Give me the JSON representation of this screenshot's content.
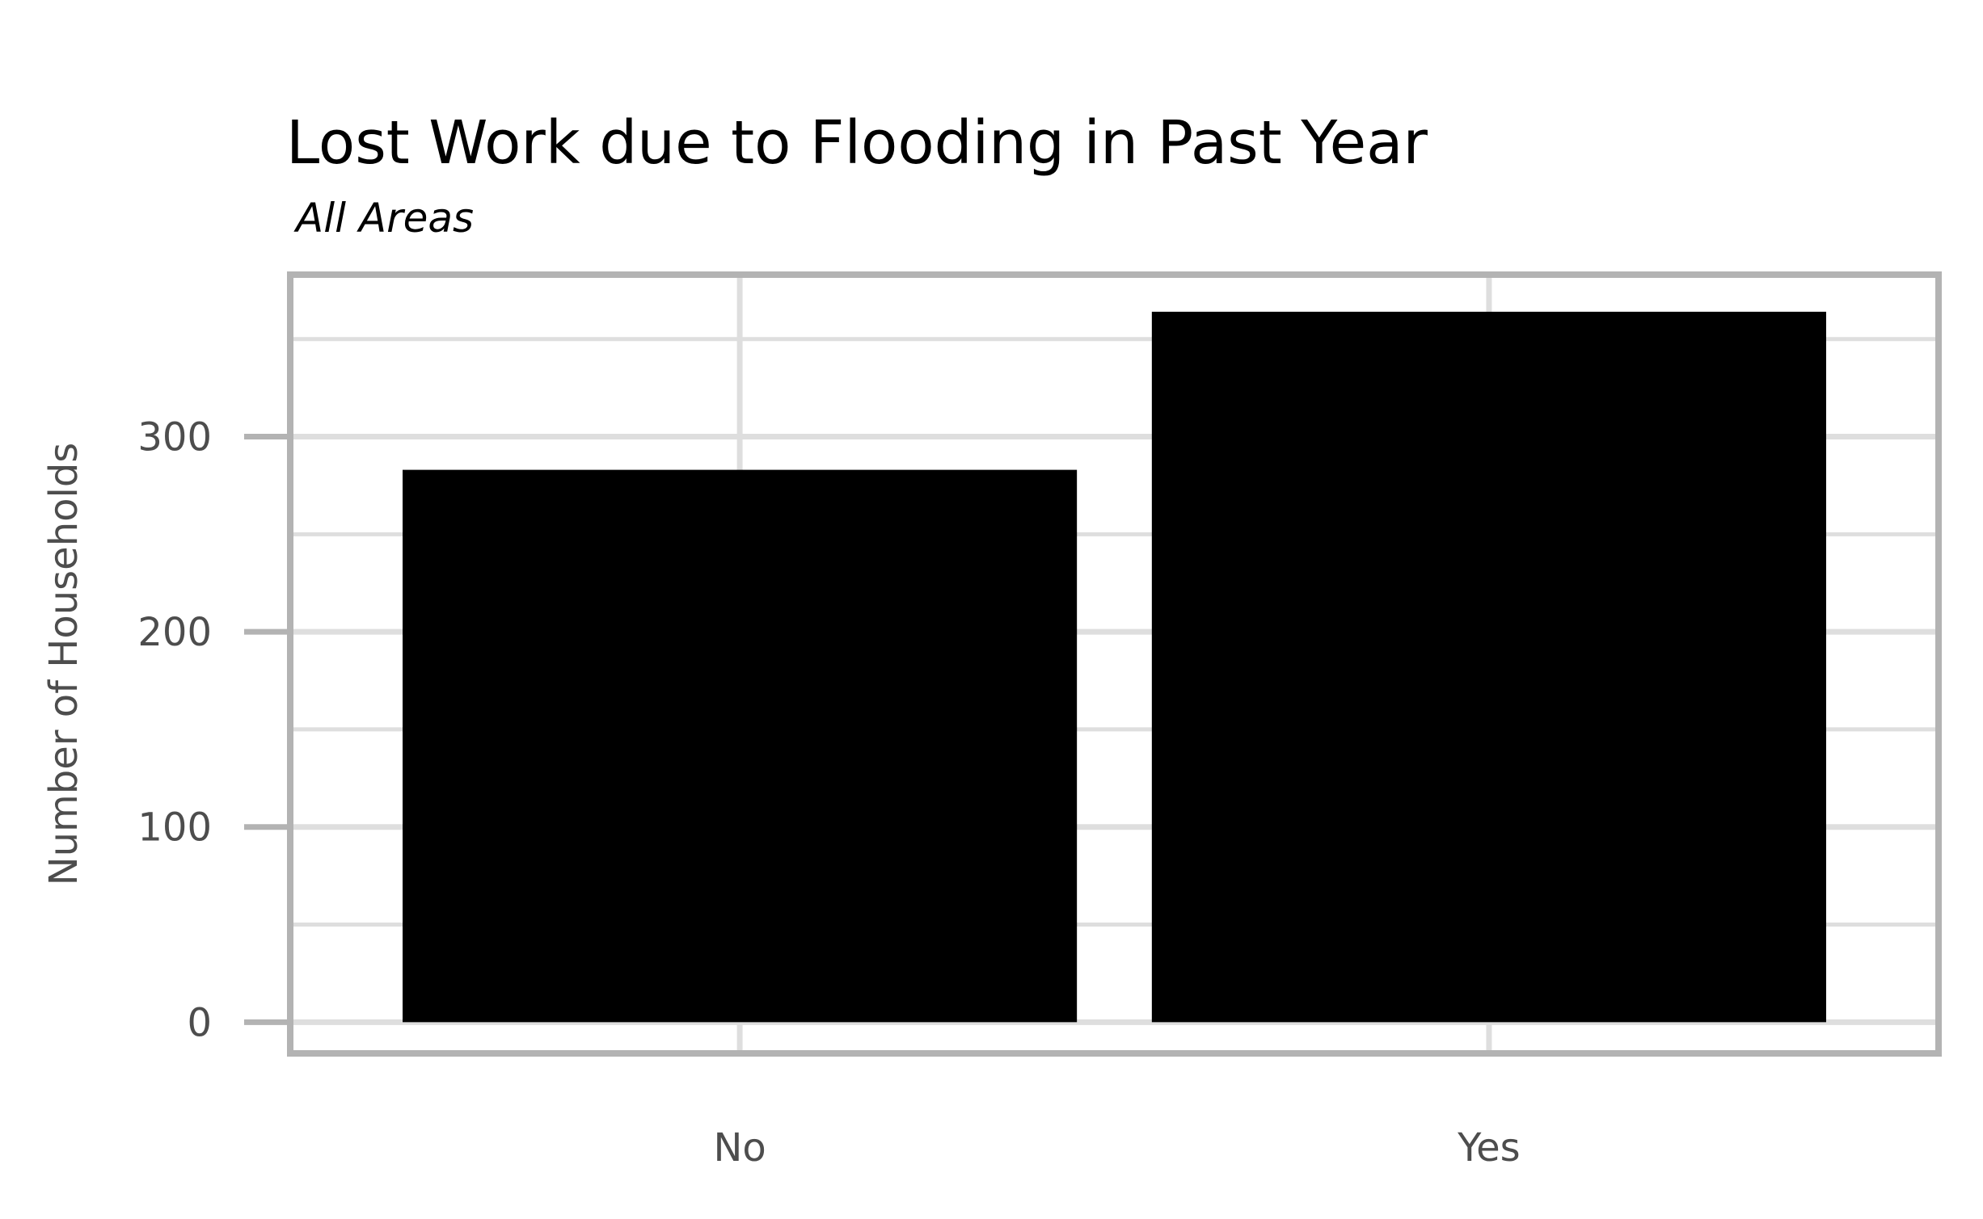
{
  "chart_data": {
    "type": "bar",
    "title": "Lost Work due to Flooding in Past Year",
    "subtitle": "All Areas",
    "xlabel": "",
    "ylabel": "Number of Households",
    "categories": [
      "No",
      "Yes"
    ],
    "values": [
      283,
      364
    ],
    "ylim": [
      -16,
      383
    ],
    "yticks": [
      0,
      100,
      200,
      300
    ],
    "yticks_minor": [
      50,
      150,
      250,
      350
    ],
    "grid": true,
    "legend": "none",
    "colors": {
      "bar": "#000000",
      "grid": "#dedede",
      "panel_border": "#b3b3b3",
      "tick_mark": "#b3b3b3",
      "text": "#4d4d4d",
      "title": "#000000"
    }
  }
}
